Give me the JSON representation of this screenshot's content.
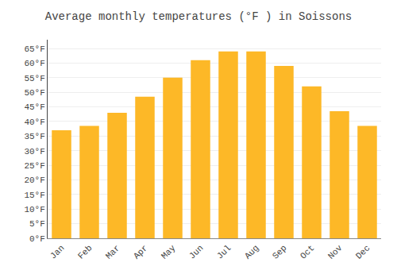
{
  "chart_data": {
    "type": "bar",
    "title": "Average monthly temperatures (°F ) in Soissons",
    "categories": [
      "Jan",
      "Feb",
      "Mar",
      "Apr",
      "May",
      "Jun",
      "Jul",
      "Aug",
      "Sep",
      "Oct",
      "Nov",
      "Dec"
    ],
    "values": [
      37,
      38.5,
      43,
      48.5,
      55,
      61,
      64,
      64,
      59,
      52,
      43.5,
      38.5
    ],
    "color": "#FDB827",
    "ylim": [
      0,
      68
    ],
    "yticks": [
      {
        "value": 0,
        "label": "0°F"
      },
      {
        "value": 5,
        "label": "5°F"
      },
      {
        "value": 10,
        "label": "10°F"
      },
      {
        "value": 15,
        "label": "15°F"
      },
      {
        "value": 20,
        "label": "20°F"
      },
      {
        "value": 25,
        "label": "25°F"
      },
      {
        "value": 30,
        "label": "30°F"
      },
      {
        "value": 35,
        "label": "35°F"
      },
      {
        "value": 40,
        "label": "40°F"
      },
      {
        "value": 45,
        "label": "45°F"
      },
      {
        "value": 50,
        "label": "50°F"
      },
      {
        "value": 55,
        "label": "55°F"
      },
      {
        "value": 60,
        "label": "60°F"
      },
      {
        "value": 65,
        "label": "65°F"
      }
    ],
    "grid": true
  }
}
